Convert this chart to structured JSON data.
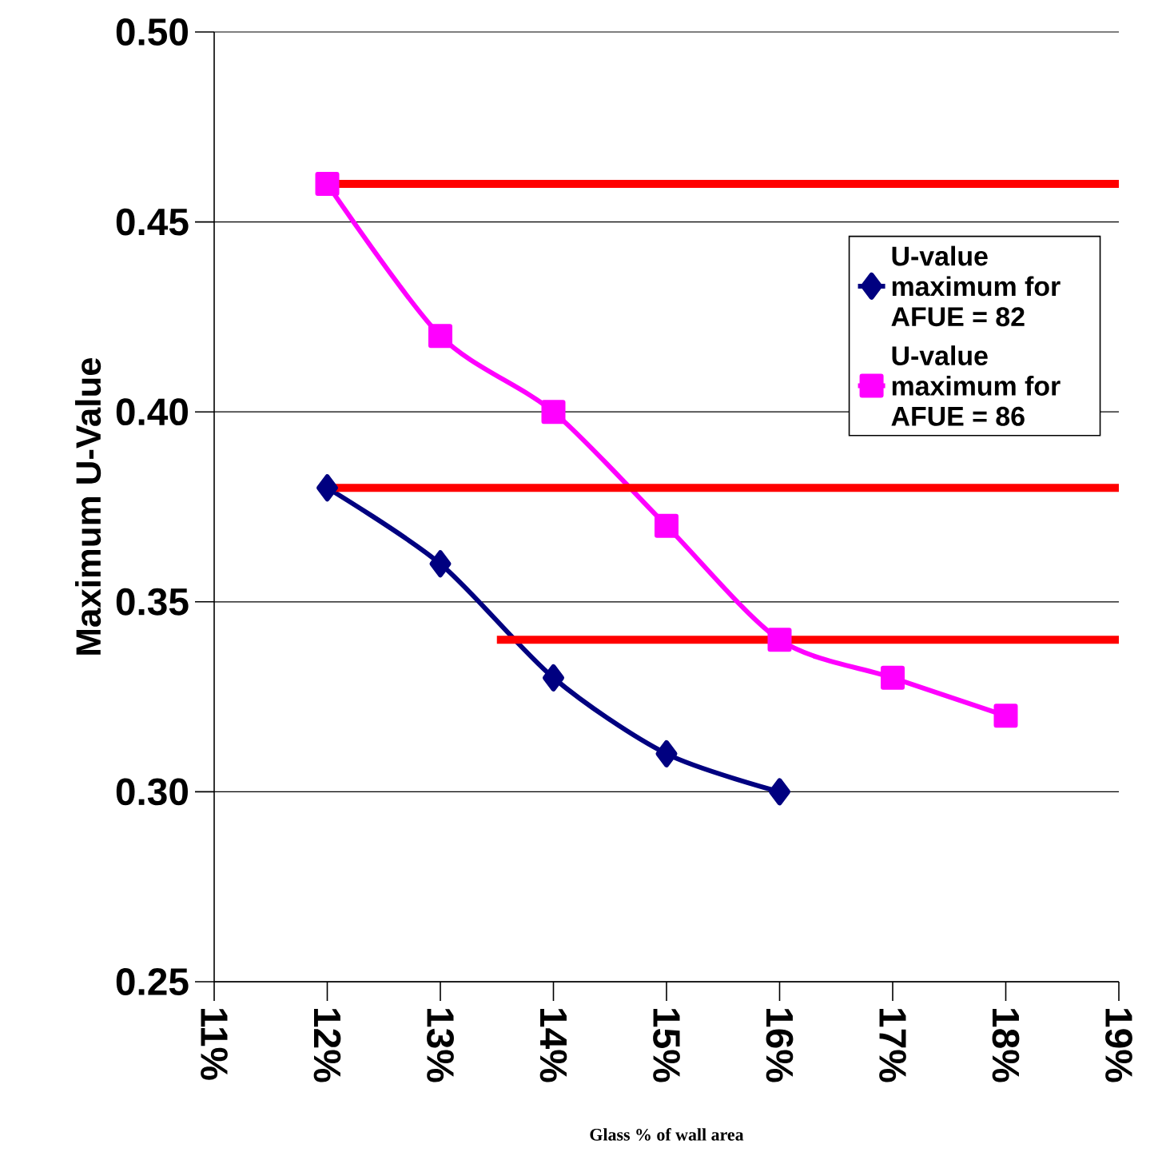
{
  "chart_data": {
    "type": "line",
    "xlabel": "Glass % of wall area",
    "ylabel": "Maximum U-Value",
    "xlim": [
      11,
      19
    ],
    "ylim": [
      0.25,
      0.5
    ],
    "xticks": [
      {
        "value": 11,
        "label": "11%"
      },
      {
        "value": 12,
        "label": "12%"
      },
      {
        "value": 13,
        "label": "13%"
      },
      {
        "value": 14,
        "label": "14%"
      },
      {
        "value": 15,
        "label": "15%"
      },
      {
        "value": 16,
        "label": "16%"
      },
      {
        "value": 17,
        "label": "17%"
      },
      {
        "value": 18,
        "label": "18%"
      },
      {
        "value": 19,
        "label": "19%"
      }
    ],
    "yticks": [
      {
        "value": 0.25,
        "label": "0.25"
      },
      {
        "value": 0.3,
        "label": "0.30"
      },
      {
        "value": 0.35,
        "label": "0.35"
      },
      {
        "value": 0.4,
        "label": "0.40"
      },
      {
        "value": 0.45,
        "label": "0.45"
      },
      {
        "value": 0.5,
        "label": "0.50"
      }
    ],
    "grid": "y",
    "legend": "right",
    "series": [
      {
        "name": "U-value maximum for AFUE = 82",
        "color": "#000080",
        "marker": "diamond",
        "x": [
          12,
          13,
          14,
          15,
          16
        ],
        "values": [
          0.38,
          0.36,
          0.33,
          0.31,
          0.3
        ]
      },
      {
        "name": "U-value maximum for AFUE = 86",
        "color": "#ff00ff",
        "marker": "square",
        "x": [
          12,
          13,
          14,
          15,
          16,
          17,
          18
        ],
        "values": [
          0.46,
          0.42,
          0.4,
          0.37,
          0.34,
          0.33,
          0.32
        ]
      },
      {
        "color": "#ff0000",
        "marker": "none",
        "x": [
          12,
          19
        ],
        "values": [
          0.46,
          0.46
        ]
      },
      {
        "color": "#ff0000",
        "marker": "none",
        "x": [
          12,
          19
        ],
        "values": [
          0.38,
          0.38
        ]
      },
      {
        "color": "#ff0000",
        "marker": "none",
        "x": [
          13.5,
          19
        ],
        "values": [
          0.34,
          0.34
        ]
      }
    ]
  }
}
